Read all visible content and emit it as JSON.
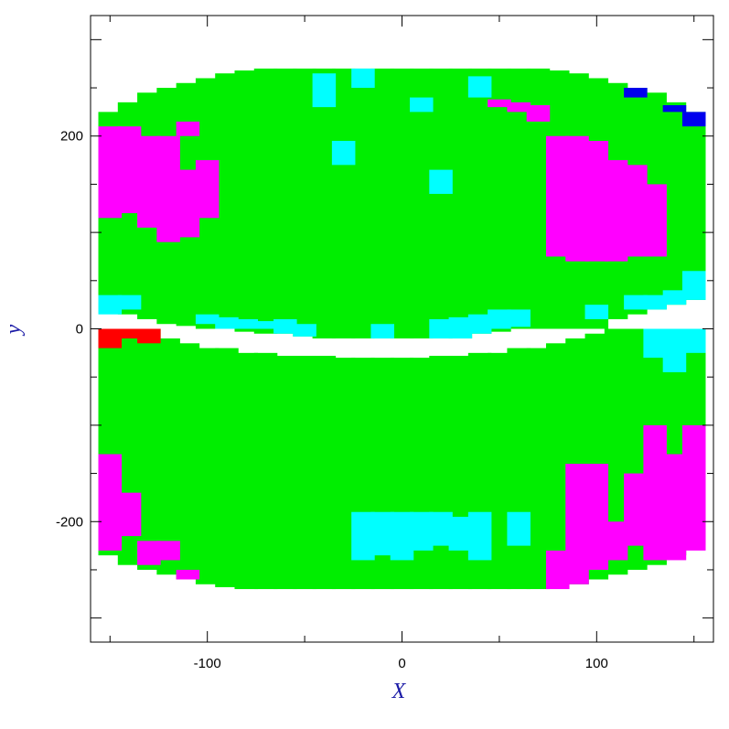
{
  "chart_data": {
    "type": "heatmap",
    "title": "",
    "xlabel": "X",
    "ylabel": "y",
    "xlim": [
      -160,
      160
    ],
    "ylim": [
      -325,
      325
    ],
    "x_ticks": [
      -100,
      0,
      100
    ],
    "y_ticks": [
      -200,
      0,
      200
    ],
    "colors": {
      "green": "#00ee00",
      "cyan": "#00ffff",
      "magenta": "#ff00ff",
      "red": "#ff0000",
      "blue": "#0000ee",
      "frame": "#000000"
    },
    "column_x_centers": [
      -150,
      -140,
      -130,
      -120,
      -110,
      -100,
      -90,
      -80,
      -70,
      -60,
      -50,
      -40,
      -30,
      -20,
      -10,
      0,
      10,
      20,
      30,
      40,
      50,
      60,
      70,
      80,
      90,
      100,
      110,
      120,
      130,
      140,
      150
    ],
    "upper_band": {
      "y_top": [
        225,
        235,
        245,
        250,
        255,
        260,
        265,
        268,
        270,
        270,
        270,
        270,
        270,
        270,
        270,
        270,
        270,
        270,
        270,
        270,
        270,
        270,
        270,
        268,
        265,
        260,
        255,
        250,
        245,
        235,
        225
      ],
      "y_bottom": [
        20,
        15,
        10,
        5,
        3,
        0,
        0,
        -3,
        -5,
        -5,
        -8,
        -10,
        -10,
        -10,
        -10,
        -10,
        -10,
        -10,
        -10,
        -5,
        -3,
        0,
        0,
        0,
        0,
        0,
        10,
        15,
        20,
        25,
        30
      ]
    },
    "lower_band": {
      "y_top": [
        0,
        0,
        0,
        -10,
        -15,
        -20,
        -20,
        -25,
        -25,
        -28,
        -28,
        -28,
        -30,
        -30,
        -30,
        -30,
        -30,
        -28,
        -28,
        -25,
        -25,
        -20,
        -20,
        -15,
        -10,
        -5,
        0,
        0,
        0,
        0,
        0
      ],
      "y_bottom": [
        -235,
        -245,
        -250,
        -255,
        -260,
        -265,
        -268,
        -270,
        -270,
        -270,
        -270,
        -270,
        -270,
        -270,
        -270,
        -270,
        -270,
        -270,
        -270,
        -270,
        -270,
        -270,
        -270,
        -268,
        -265,
        -260,
        -255,
        -250,
        -245,
        -235,
        -225
      ]
    },
    "segments": [
      {
        "band": "upper",
        "col": 0,
        "y0": 115,
        "y1": 210,
        "c": "magenta"
      },
      {
        "band": "upper",
        "col": 0,
        "y0": 15,
        "y1": 35,
        "c": "cyan"
      },
      {
        "band": "upper",
        "col": 1,
        "y0": 120,
        "y1": 210,
        "c": "magenta"
      },
      {
        "band": "upper",
        "col": 1,
        "y0": 20,
        "y1": 35,
        "c": "cyan"
      },
      {
        "band": "upper",
        "col": 2,
        "y0": 105,
        "y1": 200,
        "c": "magenta"
      },
      {
        "band": "upper",
        "col": 3,
        "y0": 90,
        "y1": 200,
        "c": "magenta"
      },
      {
        "band": "upper",
        "col": 4,
        "y0": 95,
        "y1": 165,
        "c": "magenta"
      },
      {
        "band": "upper",
        "col": 4,
        "y0": 200,
        "y1": 215,
        "c": "magenta"
      },
      {
        "band": "upper",
        "col": 5,
        "y0": 115,
        "y1": 175,
        "c": "magenta"
      },
      {
        "band": "upper",
        "col": 5,
        "y0": 5,
        "y1": 15,
        "c": "cyan"
      },
      {
        "band": "upper",
        "col": 6,
        "y0": 0,
        "y1": 12,
        "c": "cyan"
      },
      {
        "band": "upper",
        "col": 7,
        "y0": 0,
        "y1": 10,
        "c": "cyan"
      },
      {
        "band": "upper",
        "col": 8,
        "y0": 0,
        "y1": 8,
        "c": "cyan"
      },
      {
        "band": "upper",
        "col": 9,
        "y0": -5,
        "y1": 10,
        "c": "cyan"
      },
      {
        "band": "upper",
        "col": 10,
        "y0": -8,
        "y1": 5,
        "c": "cyan"
      },
      {
        "band": "upper",
        "col": 11,
        "y0": 230,
        "y1": 265,
        "c": "cyan"
      },
      {
        "band": "upper",
        "col": 12,
        "y0": 170,
        "y1": 195,
        "c": "cyan"
      },
      {
        "band": "upper",
        "col": 13,
        "y0": 250,
        "y1": 270,
        "c": "cyan"
      },
      {
        "band": "upper",
        "col": 14,
        "y0": -10,
        "y1": 5,
        "c": "cyan"
      },
      {
        "band": "upper",
        "col": 16,
        "y0": 225,
        "y1": 240,
        "c": "cyan"
      },
      {
        "band": "upper",
        "col": 17,
        "y0": 140,
        "y1": 165,
        "c": "cyan"
      },
      {
        "band": "upper",
        "col": 17,
        "y0": -10,
        "y1": 10,
        "c": "cyan"
      },
      {
        "band": "upper",
        "col": 18,
        "y0": -10,
        "y1": 12,
        "c": "cyan"
      },
      {
        "band": "upper",
        "col": 19,
        "y0": -5,
        "y1": 15,
        "c": "cyan"
      },
      {
        "band": "upper",
        "col": 19,
        "y0": 240,
        "y1": 262,
        "c": "cyan"
      },
      {
        "band": "upper",
        "col": 20,
        "y0": 0,
        "y1": 20,
        "c": "cyan"
      },
      {
        "band": "upper",
        "col": 20,
        "y0": 230,
        "y1": 238,
        "c": "magenta"
      },
      {
        "band": "upper",
        "col": 21,
        "y0": 225,
        "y1": 235,
        "c": "magenta"
      },
      {
        "band": "upper",
        "col": 21,
        "y0": 2,
        "y1": 20,
        "c": "cyan"
      },
      {
        "band": "upper",
        "col": 22,
        "y0": 215,
        "y1": 232,
        "c": "magenta"
      },
      {
        "band": "upper",
        "col": 23,
        "y0": 75,
        "y1": 200,
        "c": "magenta"
      },
      {
        "band": "upper",
        "col": 24,
        "y0": 70,
        "y1": 200,
        "c": "magenta"
      },
      {
        "band": "upper",
        "col": 25,
        "y0": 70,
        "y1": 195,
        "c": "magenta"
      },
      {
        "band": "upper",
        "col": 25,
        "y0": 10,
        "y1": 25,
        "c": "cyan"
      },
      {
        "band": "upper",
        "col": 26,
        "y0": 70,
        "y1": 175,
        "c": "magenta"
      },
      {
        "band": "upper",
        "col": 27,
        "y0": 75,
        "y1": 170,
        "c": "magenta"
      },
      {
        "band": "upper",
        "col": 27,
        "y0": 240,
        "y1": 250,
        "c": "blue"
      },
      {
        "band": "upper",
        "col": 27,
        "y0": 20,
        "y1": 35,
        "c": "cyan"
      },
      {
        "band": "upper",
        "col": 28,
        "y0": 75,
        "y1": 150,
        "c": "magenta"
      },
      {
        "band": "upper",
        "col": 28,
        "y0": 20,
        "y1": 35,
        "c": "cyan"
      },
      {
        "band": "upper",
        "col": 29,
        "y0": 25,
        "y1": 40,
        "c": "cyan"
      },
      {
        "band": "upper",
        "col": 29,
        "y0": 225,
        "y1": 232,
        "c": "blue"
      },
      {
        "band": "upper",
        "col": 30,
        "y0": 30,
        "y1": 60,
        "c": "cyan"
      },
      {
        "band": "upper",
        "col": 30,
        "y0": 210,
        "y1": 225,
        "c": "blue"
      },
      {
        "band": "lower",
        "col": 0,
        "y0": -230,
        "y1": -130,
        "c": "magenta"
      },
      {
        "band": "lower",
        "col": 0,
        "y0": -20,
        "y1": 0,
        "c": "red"
      },
      {
        "band": "lower",
        "col": 1,
        "y0": -215,
        "y1": -170,
        "c": "magenta"
      },
      {
        "band": "lower",
        "col": 1,
        "y0": -10,
        "y1": 0,
        "c": "red"
      },
      {
        "band": "lower",
        "col": 2,
        "y0": -245,
        "y1": -220,
        "c": "magenta"
      },
      {
        "band": "lower",
        "col": 2,
        "y0": -15,
        "y1": 0,
        "c": "red"
      },
      {
        "band": "lower",
        "col": 3,
        "y0": -240,
        "y1": -220,
        "c": "magenta"
      },
      {
        "band": "lower",
        "col": 4,
        "y0": -260,
        "y1": -250,
        "c": "magenta"
      },
      {
        "band": "lower",
        "col": 13,
        "y0": -240,
        "y1": -190,
        "c": "cyan"
      },
      {
        "band": "lower",
        "col": 14,
        "y0": -235,
        "y1": -190,
        "c": "cyan"
      },
      {
        "band": "lower",
        "col": 15,
        "y0": -240,
        "y1": -190,
        "c": "cyan"
      },
      {
        "band": "lower",
        "col": 16,
        "y0": -230,
        "y1": -190,
        "c": "cyan"
      },
      {
        "band": "lower",
        "col": 17,
        "y0": -225,
        "y1": -190,
        "c": "cyan"
      },
      {
        "band": "lower",
        "col": 18,
        "y0": -230,
        "y1": -195,
        "c": "cyan"
      },
      {
        "band": "lower",
        "col": 19,
        "y0": -240,
        "y1": -190,
        "c": "cyan"
      },
      {
        "band": "lower",
        "col": 21,
        "y0": -225,
        "y1": -190,
        "c": "cyan"
      },
      {
        "band": "lower",
        "col": 23,
        "y0": -270,
        "y1": -230,
        "c": "magenta"
      },
      {
        "band": "lower",
        "col": 24,
        "y0": -265,
        "y1": -140,
        "c": "magenta"
      },
      {
        "band": "lower",
        "col": 25,
        "y0": -250,
        "y1": -140,
        "c": "magenta"
      },
      {
        "band": "lower",
        "col": 26,
        "y0": -240,
        "y1": -200,
        "c": "magenta"
      },
      {
        "band": "lower",
        "col": 27,
        "y0": -225,
        "y1": -150,
        "c": "magenta"
      },
      {
        "band": "lower",
        "col": 28,
        "y0": -240,
        "y1": -100,
        "c": "magenta"
      },
      {
        "band": "lower",
        "col": 28,
        "y0": -30,
        "y1": 0,
        "c": "cyan"
      },
      {
        "band": "lower",
        "col": 29,
        "y0": -240,
        "y1": -130,
        "c": "magenta"
      },
      {
        "band": "lower",
        "col": 29,
        "y0": -45,
        "y1": 0,
        "c": "cyan"
      },
      {
        "band": "lower",
        "col": 30,
        "y0": -230,
        "y1": -100,
        "c": "magenta"
      },
      {
        "band": "lower",
        "col": 30,
        "y0": -25,
        "y1": 0,
        "c": "cyan"
      }
    ]
  }
}
